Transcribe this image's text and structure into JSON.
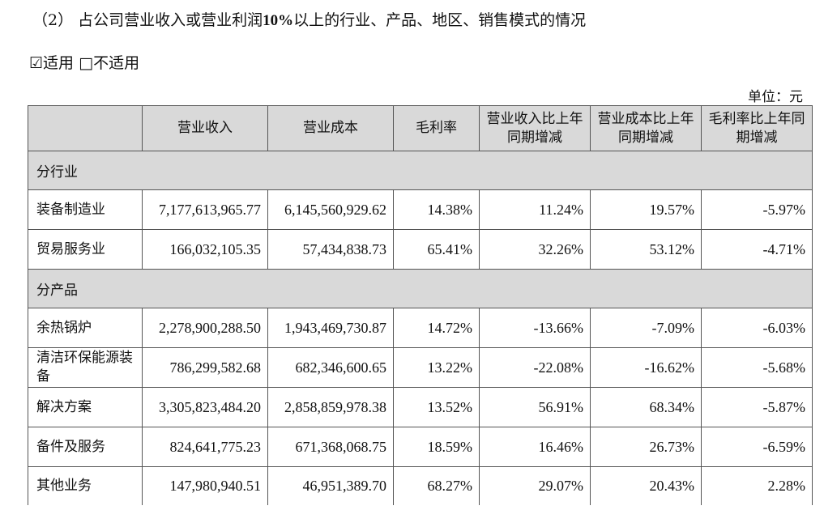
{
  "heading": {
    "prefix": "（2） 占公司营业收入或营业利润",
    "bold": "10%",
    "suffix": "以上的行业、产品、地区、销售模式的情况"
  },
  "applicability": {
    "checked_box": "☑",
    "checked_label": "适用",
    "unchecked_box": "□",
    "unchecked_label": "不适用"
  },
  "unit_label": "单位：元",
  "table": {
    "headers": [
      "",
      "营业收入",
      "营业成本",
      "毛利率",
      "营业收入比上年同期增减",
      "营业成本比上年同期增减",
      "毛利率比上年同期增减"
    ],
    "sections": [
      {
        "title": "分行业",
        "rows": [
          {
            "name": "装备制造业",
            "cells": [
              "7,177,613,965.77",
              "6,145,560,929.62",
              "14.38%",
              "11.24%",
              "19.57%",
              "-5.97%"
            ]
          },
          {
            "name": "贸易服务业",
            "cells": [
              "166,032,105.35",
              "57,434,838.73",
              "65.41%",
              "32.26%",
              "53.12%",
              "-4.71%"
            ]
          }
        ]
      },
      {
        "title": "分产品",
        "rows": [
          {
            "name": "余热锅炉",
            "cells": [
              "2,278,900,288.50",
              "1,943,469,730.87",
              "14.72%",
              "-13.66%",
              "-7.09%",
              "-6.03%"
            ]
          },
          {
            "name": "清洁环保能源装备",
            "cells": [
              "786,299,582.68",
              "682,346,600.65",
              "13.22%",
              "-22.08%",
              "-16.62%",
              "-5.68%"
            ]
          },
          {
            "name": "解决方案",
            "cells": [
              "3,305,823,484.20",
              "2,858,859,978.38",
              "13.52%",
              "56.91%",
              "68.34%",
              "-5.87%"
            ]
          },
          {
            "name": "备件及服务",
            "cells": [
              "824,641,775.23",
              "671,368,068.75",
              "18.59%",
              "16.46%",
              "26.73%",
              "-6.59%"
            ]
          },
          {
            "name": "其他业务",
            "cells": [
              "147,980,940.51",
              "46,951,389.70",
              "68.27%",
              "29.07%",
              "20.43%",
              "2.28%"
            ]
          }
        ]
      }
    ]
  }
}
